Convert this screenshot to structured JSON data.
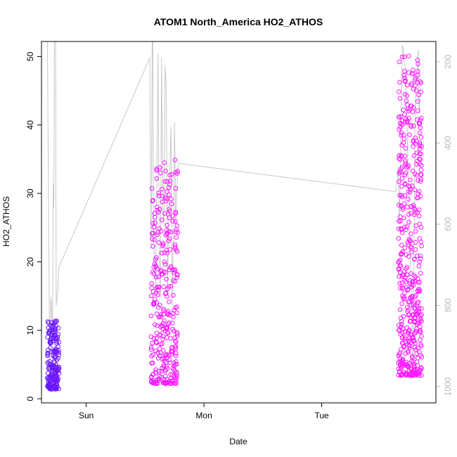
{
  "chart_data": {
    "type": "scatter",
    "title": "ATOM1 North_America HO2_ATHOS",
    "xlabel": "Date",
    "ylabel": "HO2_ATHOS",
    "x_ticks": [
      {
        "label": "Sun",
        "value": 0
      },
      {
        "label": "Mon",
        "value": 1
      },
      {
        "label": "Tue",
        "value": 2
      }
    ],
    "xlim": [
      -0.38,
      2.97
    ],
    "y_ticks": [
      0,
      10,
      20,
      30,
      40,
      50
    ],
    "ylim": [
      -0.6,
      52.2
    ],
    "y2_ticks": [
      200,
      400,
      600,
      800,
      1000
    ],
    "y2lim": [
      1040,
      150
    ],
    "y2_reversed": true,
    "grid": false,
    "colors": {
      "low": "#5b17ff",
      "high": "#ff19ff",
      "mid": "#c81cff",
      "pressure_line": "#c8c8c8",
      "right_axis": "#b8b8b8"
    },
    "series": [
      {
        "marker": "open-circle",
        "clusters": [
          {
            "day": "Sun",
            "x_range": [
              -0.33,
              -0.23
            ],
            "y_range": [
              1.4,
              11.4
            ],
            "n": 190
          },
          {
            "day": "Mon",
            "x_range": [
              0.55,
              0.78
            ],
            "y_range": [
              2.2,
              35
            ],
            "n": 320
          },
          {
            "day": "Tue",
            "x_range": [
              2.65,
              2.85
            ],
            "y_range": [
              3.4,
              50.3
            ],
            "n": 480
          }
        ]
      },
      {
        "axis": "right",
        "style": "line",
        "points": [
          [
            -0.33,
            150
          ],
          [
            -0.31,
            950
          ],
          [
            -0.3,
            780
          ],
          [
            -0.295,
            800
          ],
          [
            -0.29,
            850
          ],
          [
            -0.285,
            820
          ],
          [
            -0.28,
            500
          ],
          [
            -0.275,
            560
          ],
          [
            -0.27,
            150
          ],
          [
            -0.265,
            150
          ],
          [
            -0.26,
            150
          ],
          [
            -0.255,
            800
          ],
          [
            -0.25,
            790
          ],
          [
            -0.245,
            770
          ],
          [
            -0.24,
            760
          ],
          [
            -0.235,
            710
          ],
          [
            -0.23,
            705
          ],
          [
            0.54,
            190
          ],
          [
            0.55,
            660
          ],
          [
            0.555,
            500
          ],
          [
            0.56,
            150
          ],
          [
            0.565,
            130
          ],
          [
            0.57,
            560
          ],
          [
            0.58,
            700
          ],
          [
            0.59,
            760
          ],
          [
            0.61,
            180
          ],
          [
            0.62,
            700
          ],
          [
            0.625,
            720
          ],
          [
            0.63,
            780
          ],
          [
            0.64,
            190
          ],
          [
            0.65,
            560
          ],
          [
            0.66,
            600
          ],
          [
            0.67,
            210
          ],
          [
            0.68,
            260
          ],
          [
            0.69,
            780
          ],
          [
            0.7,
            580
          ],
          [
            0.72,
            360
          ],
          [
            0.73,
            800
          ],
          [
            0.745,
            570
          ],
          [
            0.75,
            350
          ],
          [
            0.76,
            600
          ],
          [
            0.775,
            480
          ],
          [
            0.78,
            450
          ],
          [
            2.63,
            520
          ],
          [
            2.65,
            460
          ],
          [
            2.66,
            600
          ],
          [
            2.675,
            330
          ],
          [
            2.685,
            160
          ],
          [
            2.695,
            170
          ],
          [
            2.7,
            200
          ],
          [
            2.71,
            210
          ],
          [
            2.72,
            290
          ],
          [
            2.73,
            420
          ],
          [
            2.74,
            540
          ],
          [
            2.75,
            640
          ],
          [
            2.76,
            760
          ],
          [
            2.77,
            880
          ],
          [
            2.775,
            960
          ],
          [
            2.78,
            820
          ],
          [
            2.79,
            400
          ],
          [
            2.8,
            230
          ],
          [
            2.81,
            250
          ],
          [
            2.82,
            170
          ],
          [
            2.825,
            300
          ],
          [
            2.83,
            330
          ],
          [
            2.84,
            250
          ]
        ]
      }
    ]
  }
}
